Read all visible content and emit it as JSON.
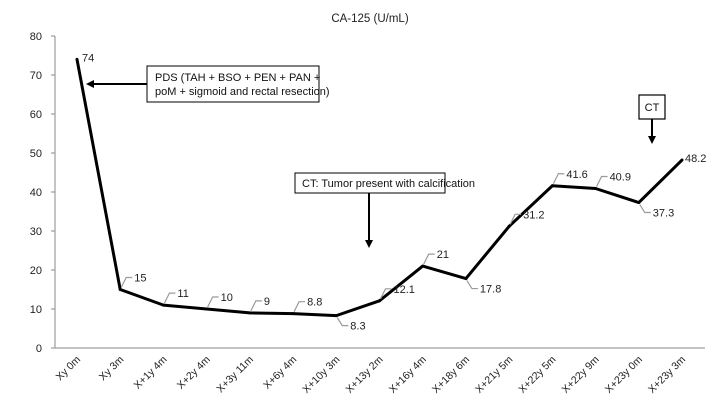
{
  "chart_data": {
    "type": "line",
    "title": "CA-125 (U/mL)",
    "xlabel": "",
    "ylabel": "",
    "ylim": [
      0,
      80
    ],
    "yticks": [
      0,
      10,
      20,
      30,
      40,
      50,
      60,
      70,
      80
    ],
    "grid": false,
    "categories": [
      "Xy 0m",
      "Xy 3m",
      "X+1y 4m",
      "X+2y 4m",
      "X+3y 11m",
      "X+6y 4m",
      "X+10y 3m",
      "X+13y 2m",
      "X+16y 4m",
      "X+18y 6m",
      "X+21y 5m",
      "X+22y 5m",
      "X+22y 9m",
      "X+23y 0m",
      "X+23y 3m"
    ],
    "values": [
      74,
      15,
      11,
      10,
      9,
      8.8,
      8.3,
      12.1,
      21,
      17.8,
      31.2,
      41.6,
      40.9,
      37.3,
      48.2
    ],
    "data_labels": [
      "74",
      "15",
      "11",
      "10",
      "9",
      "8.8",
      "8.3",
      "12.1",
      "21",
      "17.8",
      "31.2",
      "41.6",
      "40.9",
      "37.3",
      "48.2"
    ],
    "annotations": [
      {
        "lines": [
          "PDS (TAH + BSO + PEN + PAN +",
          "poM + sigmoid and rectal resection)"
        ],
        "target_index": 0,
        "boxed": true
      },
      {
        "lines": [
          "CT: Tumor present with calcification"
        ],
        "target_index": 7,
        "boxed": true
      },
      {
        "lines": [
          "CT"
        ],
        "target_index": 13,
        "boxed": true
      }
    ],
    "line_color": "#000000"
  }
}
